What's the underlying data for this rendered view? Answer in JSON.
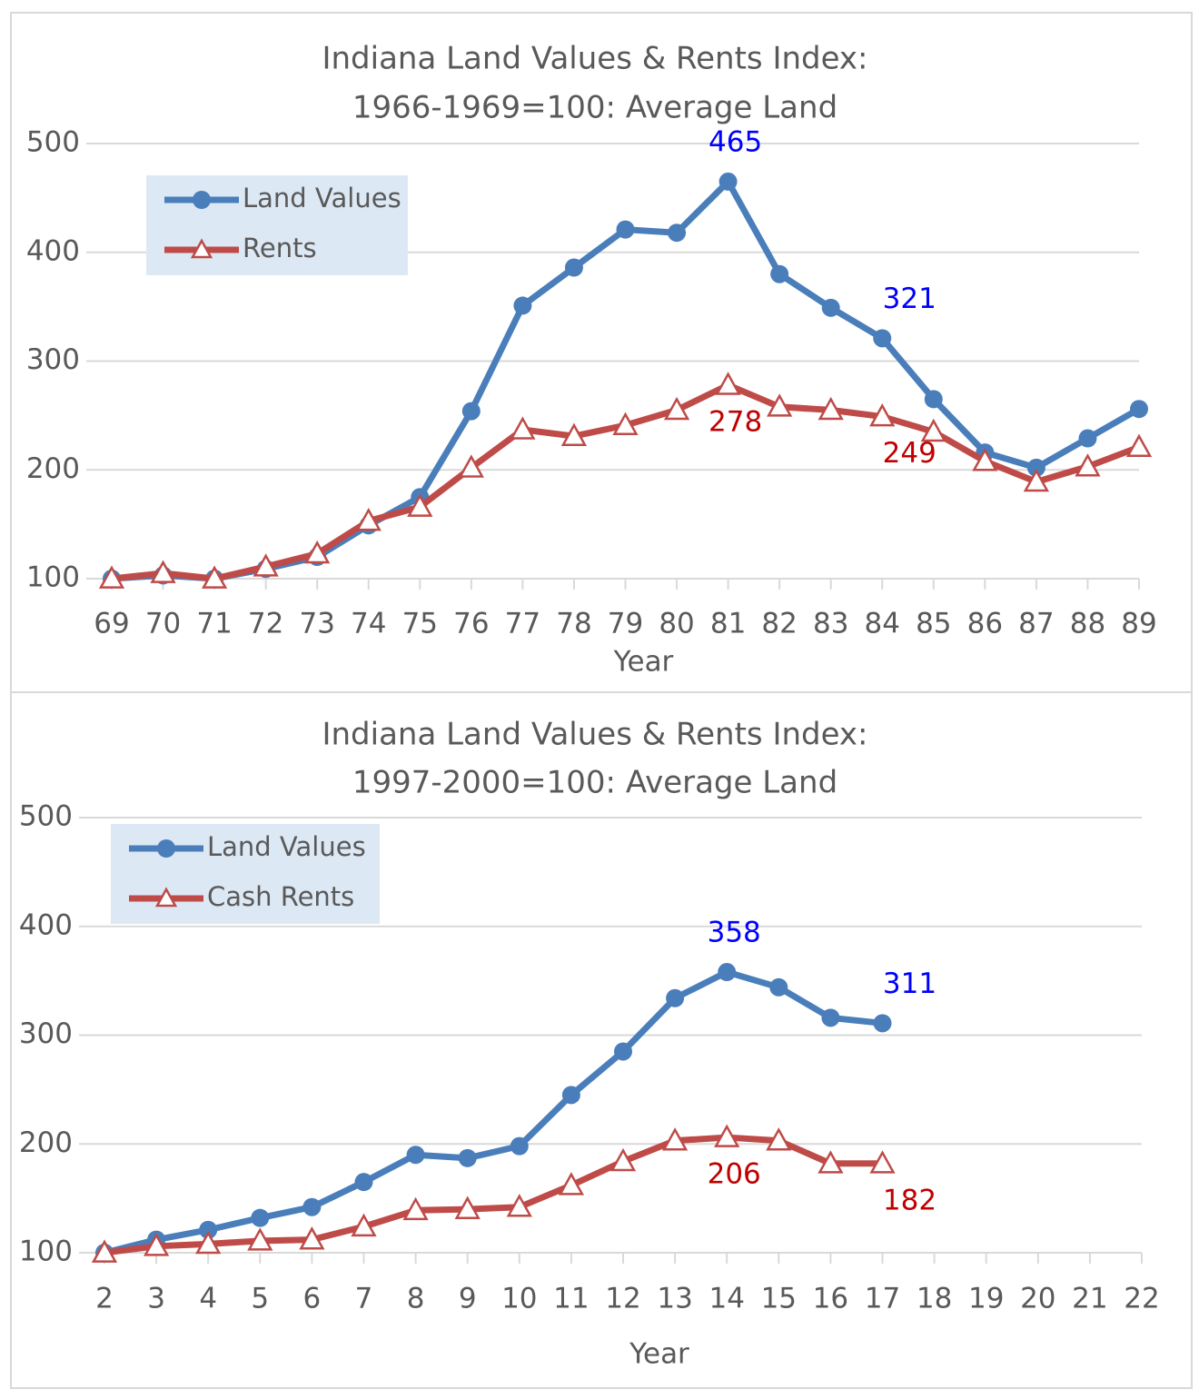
{
  "chart_data": [
    {
      "type": "line",
      "title": "Indiana Land Values & Rents Index:",
      "subtitle": "1966-1969=100: Average Land",
      "x_label": "Year",
      "categories": [
        "69",
        "70",
        "71",
        "72",
        "73",
        "74",
        "75",
        "76",
        "77",
        "78",
        "79",
        "80",
        "81",
        "82",
        "83",
        "84",
        "85",
        "86",
        "87",
        "88",
        "89"
      ],
      "series": [
        {
          "name": "Land Values",
          "color": "#4a7ebb",
          "marker": "circle",
          "label_color": "#0000ff",
          "label_side": "above",
          "labeled": [
            12,
            15
          ],
          "values": [
            100,
            103,
            100,
            109,
            120,
            149,
            175,
            254,
            351,
            386,
            421,
            418,
            465,
            380,
            349,
            321,
            265,
            216,
            202,
            229,
            256
          ]
        },
        {
          "name": "Rents",
          "color": "#be4b48",
          "marker": "triangle",
          "label_color": "#c00000",
          "label_side": "below",
          "labeled": [
            12,
            15
          ],
          "values": [
            100,
            105,
            100,
            111,
            123,
            153,
            166,
            202,
            237,
            231,
            241,
            255,
            278,
            258,
            255,
            249,
            235,
            208,
            189,
            203,
            221
          ]
        }
      ],
      "ylim": [
        100,
        500
      ],
      "yticks": [
        100,
        200,
        300,
        400,
        500
      ],
      "grid": true,
      "legend": "upper left"
    },
    {
      "type": "line",
      "title": "Indiana Land Values & Rents Index:",
      "subtitle": "1997-2000=100: Average Land",
      "x_label": "Year",
      "categories": [
        "2",
        "3",
        "4",
        "5",
        "6",
        "7",
        "8",
        "9",
        "10",
        "11",
        "12",
        "13",
        "14",
        "15",
        "16",
        "17",
        "18",
        "19",
        "20",
        "21",
        "22"
      ],
      "series": [
        {
          "name": "Land Values",
          "color": "#4a7ebb",
          "marker": "circle",
          "label_color": "#0000ff",
          "label_side": "above",
          "labeled": [
            12,
            15
          ],
          "values": [
            100,
            112,
            121,
            132,
            142,
            165,
            190,
            187,
            198,
            245,
            285,
            334,
            358,
            344,
            316,
            311,
            null,
            null,
            null,
            null,
            null
          ]
        },
        {
          "name": "Cash Rents",
          "color": "#be4b48",
          "marker": "triangle",
          "label_color": "#c00000",
          "label_side": "below",
          "labeled": [
            12,
            15
          ],
          "values": [
            100,
            106,
            108,
            111,
            112,
            124,
            139,
            140,
            142,
            162,
            184,
            203,
            206,
            203,
            182,
            182,
            null,
            null,
            null,
            null,
            null
          ]
        }
      ],
      "ylim": [
        100,
        500
      ],
      "yticks": [
        100,
        200,
        300,
        400,
        500
      ],
      "grid": true,
      "legend": "upper left"
    }
  ]
}
